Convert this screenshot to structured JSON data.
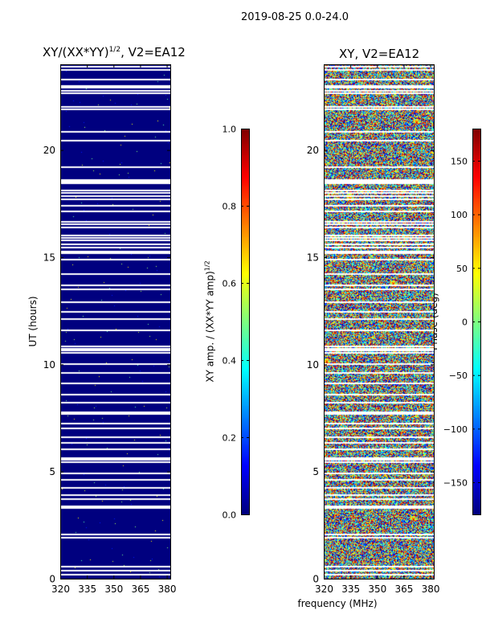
{
  "figure_title": "2019-08-25 0.0-24.0",
  "colors": {
    "background": "#00007f",
    "flag": "#ffffff",
    "jet": [
      "#00007f",
      "#0000ff",
      "#007fff",
      "#00ffff",
      "#7fff7f",
      "#ffff00",
      "#ff7f00",
      "#ff0000",
      "#7f0000"
    ]
  },
  "chart_data": [
    {
      "type": "heatmap",
      "title": "XY/(XX*YY)",
      "title_exponent": "1/2",
      "title_suffix": ", V2=EA12",
      "xlabel": "",
      "ylabel": "UT (hours)",
      "xlim": [
        320,
        382
      ],
      "ylim": [
        0,
        24
      ],
      "x_ticks": [
        320,
        335,
        350,
        365,
        380
      ],
      "y_ticks": [
        0,
        5,
        10,
        15,
        20
      ],
      "background_value": 0.0,
      "flagged_ut": [
        0.2,
        0.38,
        0.55,
        1.9,
        2.05,
        3.3,
        3.38,
        3.72,
        3.9,
        4.25,
        4.6,
        4.9,
        5.45,
        5.55,
        5.62,
        6.05,
        6.35,
        6.6,
        7.0,
        7.22,
        7.7,
        7.78,
        8.2,
        8.58,
        9.1,
        9.6,
        10.02,
        10.55,
        10.65,
        10.72,
        10.82,
        11.6,
        12.1,
        12.45,
        12.9,
        13.5,
        13.7,
        14.2,
        14.9,
        15.2,
        15.28,
        15.45,
        15.6,
        15.78,
        15.9,
        16.0,
        16.4,
        16.55,
        16.65,
        17.15,
        17.4,
        17.7,
        17.85,
        18.0,
        18.1,
        18.45,
        18.52,
        18.6,
        19.2,
        20.45,
        20.85,
        21.9,
        22.0,
        22.65,
        22.78,
        22.9,
        23.0,
        23.3,
        23.75,
        23.9
      ],
      "colorbar": {
        "label": "XY amp. / (XX*YY amp)",
        "label_exponent": "1/2",
        "range": [
          0.0,
          1.0
        ],
        "ticks": [
          "0.0",
          "0.2",
          "0.4",
          "0.6",
          "0.8",
          "1.0"
        ]
      }
    },
    {
      "type": "heatmap",
      "title": "XY, V2=EA12",
      "xlabel": "frequency (MHz)",
      "ylabel": "",
      "xlim": [
        320,
        382
      ],
      "ylim": [
        0,
        24
      ],
      "x_ticks": [
        320,
        335,
        350,
        365,
        380
      ],
      "y_ticks": [
        0,
        5,
        10,
        15,
        20
      ],
      "value_distribution": "uniform random phase",
      "flagged_ut": [
        0.2,
        0.38,
        0.55,
        1.9,
        2.05,
        3.3,
        3.38,
        3.72,
        3.9,
        4.25,
        4.6,
        4.9,
        5.45,
        5.55,
        5.62,
        6.05,
        6.35,
        6.6,
        7.0,
        7.22,
        7.7,
        7.78,
        8.2,
        8.58,
        9.1,
        9.6,
        10.02,
        10.55,
        10.65,
        10.72,
        10.82,
        11.6,
        12.1,
        12.45,
        12.9,
        13.5,
        13.7,
        14.2,
        14.9,
        15.2,
        15.28,
        15.45,
        15.6,
        15.78,
        15.9,
        16.0,
        16.4,
        16.55,
        16.65,
        17.15,
        17.4,
        17.7,
        17.85,
        18.0,
        18.1,
        18.45,
        18.52,
        18.6,
        19.2,
        20.45,
        20.85,
        21.9,
        22.0,
        22.65,
        22.78,
        22.9,
        23.0,
        23.3,
        23.75,
        23.9
      ],
      "colorbar": {
        "label": "Phase (deg)",
        "range": [
          -180,
          180
        ],
        "ticks": [
          "−150",
          "−100",
          "−50",
          "0",
          "50",
          "100",
          "150"
        ]
      }
    }
  ]
}
